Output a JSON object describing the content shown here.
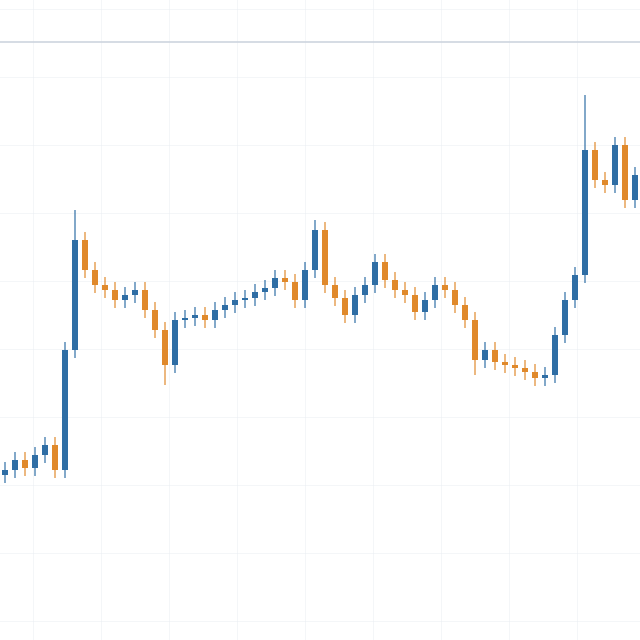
{
  "chart_data": {
    "type": "candlestick",
    "ylim": [
      0,
      640
    ],
    "grid": true,
    "up_color": "#2f6ea5",
    "down_color": "#e0892b",
    "series": {
      "open": [
        165,
        170,
        180,
        172,
        185,
        195,
        170,
        290,
        400,
        370,
        355,
        350,
        340,
        345,
        350,
        330,
        310,
        275,
        320,
        322,
        325,
        320,
        330,
        335,
        340,
        342,
        348,
        352,
        362,
        358,
        340,
        370,
        410,
        355,
        342,
        325,
        345,
        355,
        378,
        360,
        350,
        345,
        328,
        340,
        355,
        350,
        335,
        320,
        280,
        290,
        278,
        275,
        272,
        268,
        262,
        265,
        305,
        340,
        365,
        490,
        460,
        455,
        495,
        440
      ],
      "high": [
        178,
        188,
        188,
        193,
        203,
        203,
        298,
        430,
        408,
        378,
        363,
        358,
        353,
        358,
        358,
        338,
        318,
        328,
        330,
        333,
        333,
        338,
        343,
        348,
        350,
        356,
        360,
        370,
        370,
        366,
        378,
        420,
        418,
        363,
        350,
        353,
        363,
        386,
        386,
        368,
        358,
        353,
        348,
        363,
        363,
        358,
        343,
        328,
        298,
        298,
        286,
        283,
        280,
        276,
        273,
        313,
        348,
        373,
        545,
        498,
        468,
        503,
        503,
        473
      ],
      "low": [
        157,
        162,
        164,
        164,
        177,
        162,
        162,
        282,
        362,
        347,
        342,
        332,
        332,
        337,
        322,
        302,
        255,
        267,
        312,
        314,
        312,
        312,
        322,
        327,
        332,
        334,
        340,
        344,
        350,
        332,
        332,
        362,
        347,
        334,
        317,
        317,
        337,
        347,
        352,
        342,
        337,
        320,
        320,
        332,
        342,
        327,
        312,
        265,
        272,
        270,
        267,
        264,
        260,
        254,
        254,
        257,
        297,
        332,
        357,
        452,
        447,
        447,
        432,
        432
      ],
      "close": [
        170,
        180,
        172,
        185,
        195,
        170,
        290,
        400,
        370,
        355,
        350,
        340,
        345,
        350,
        330,
        310,
        275,
        320,
        322,
        325,
        320,
        330,
        335,
        340,
        342,
        348,
        352,
        362,
        358,
        340,
        370,
        410,
        355,
        342,
        325,
        345,
        355,
        378,
        360,
        350,
        345,
        328,
        340,
        355,
        350,
        335,
        320,
        280,
        290,
        278,
        275,
        272,
        268,
        262,
        265,
        305,
        340,
        365,
        490,
        460,
        455,
        495,
        440,
        465
      ]
    }
  }
}
